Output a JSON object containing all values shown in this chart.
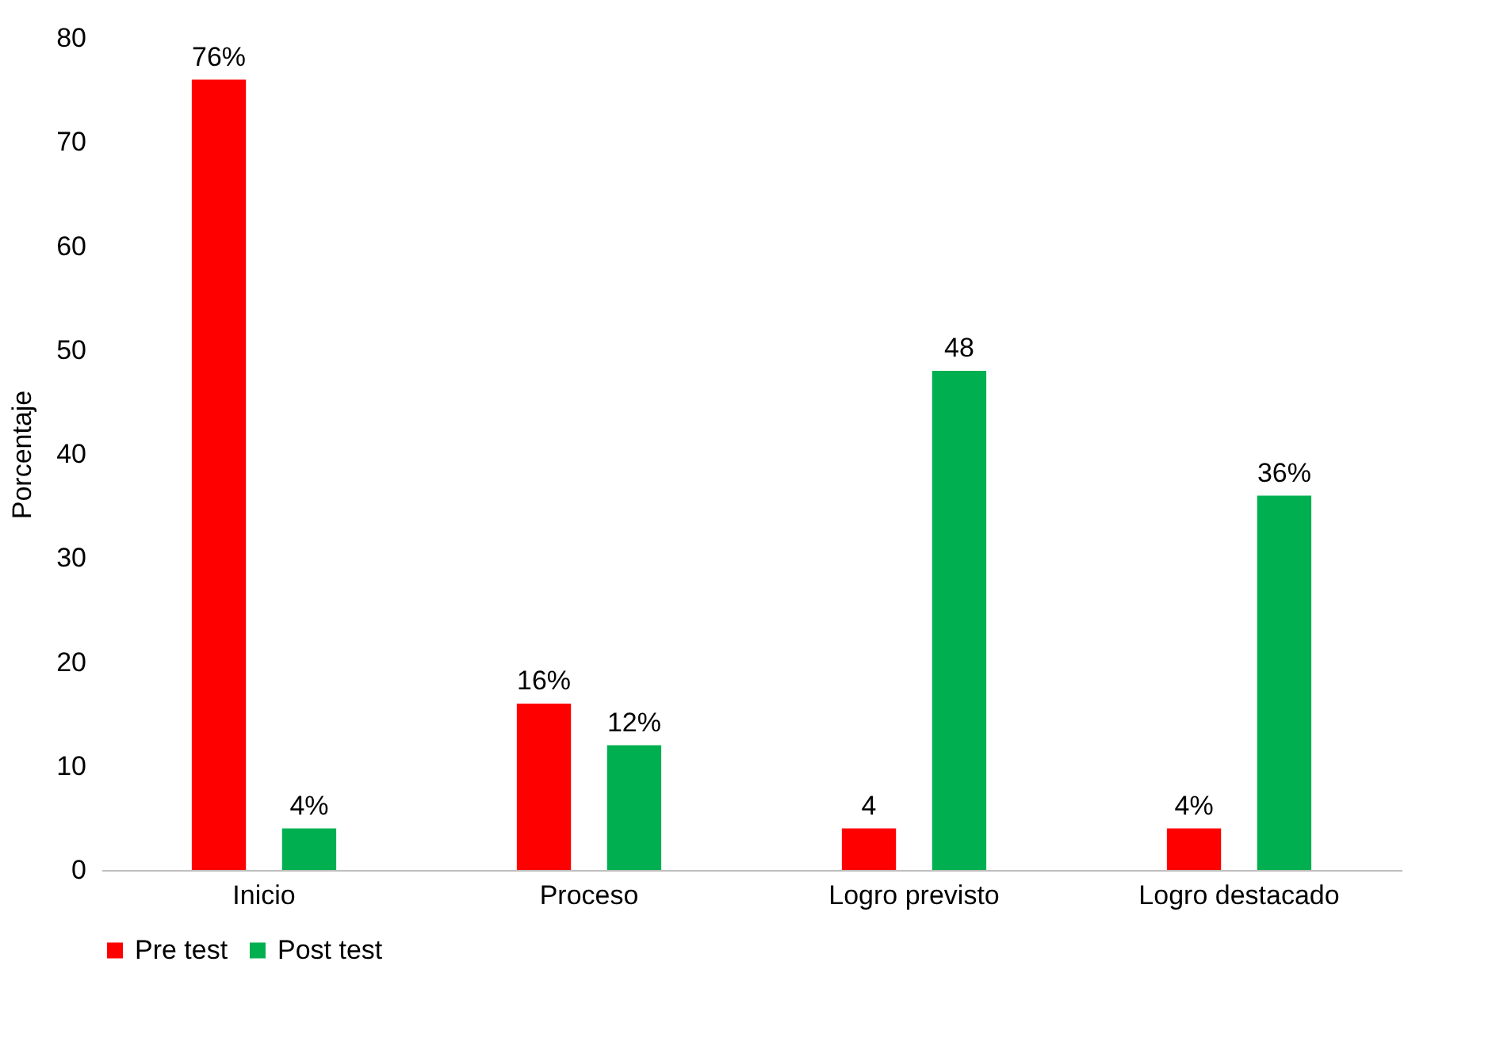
{
  "chart_data": {
    "type": "bar",
    "ylabel": "Porcentaje",
    "categories": [
      "Inicio",
      "Proceso",
      "Logro previsto",
      "Logro destacado"
    ],
    "series": [
      {
        "name": "Pre test",
        "color": "#ff0000",
        "values": [
          76,
          16,
          4,
          4
        ],
        "value_labels": [
          "76%",
          "16%",
          "4",
          "4%"
        ]
      },
      {
        "name": "Post test",
        "color": "#00b050",
        "values": [
          4,
          12,
          48,
          36
        ],
        "value_labels": [
          "4%",
          "12%",
          "48",
          "36%"
        ]
      }
    ],
    "ylim": [
      0,
      80
    ],
    "yticks": [
      0,
      10,
      20,
      30,
      40,
      50,
      60,
      70,
      80
    ],
    "legend": "bottom"
  }
}
